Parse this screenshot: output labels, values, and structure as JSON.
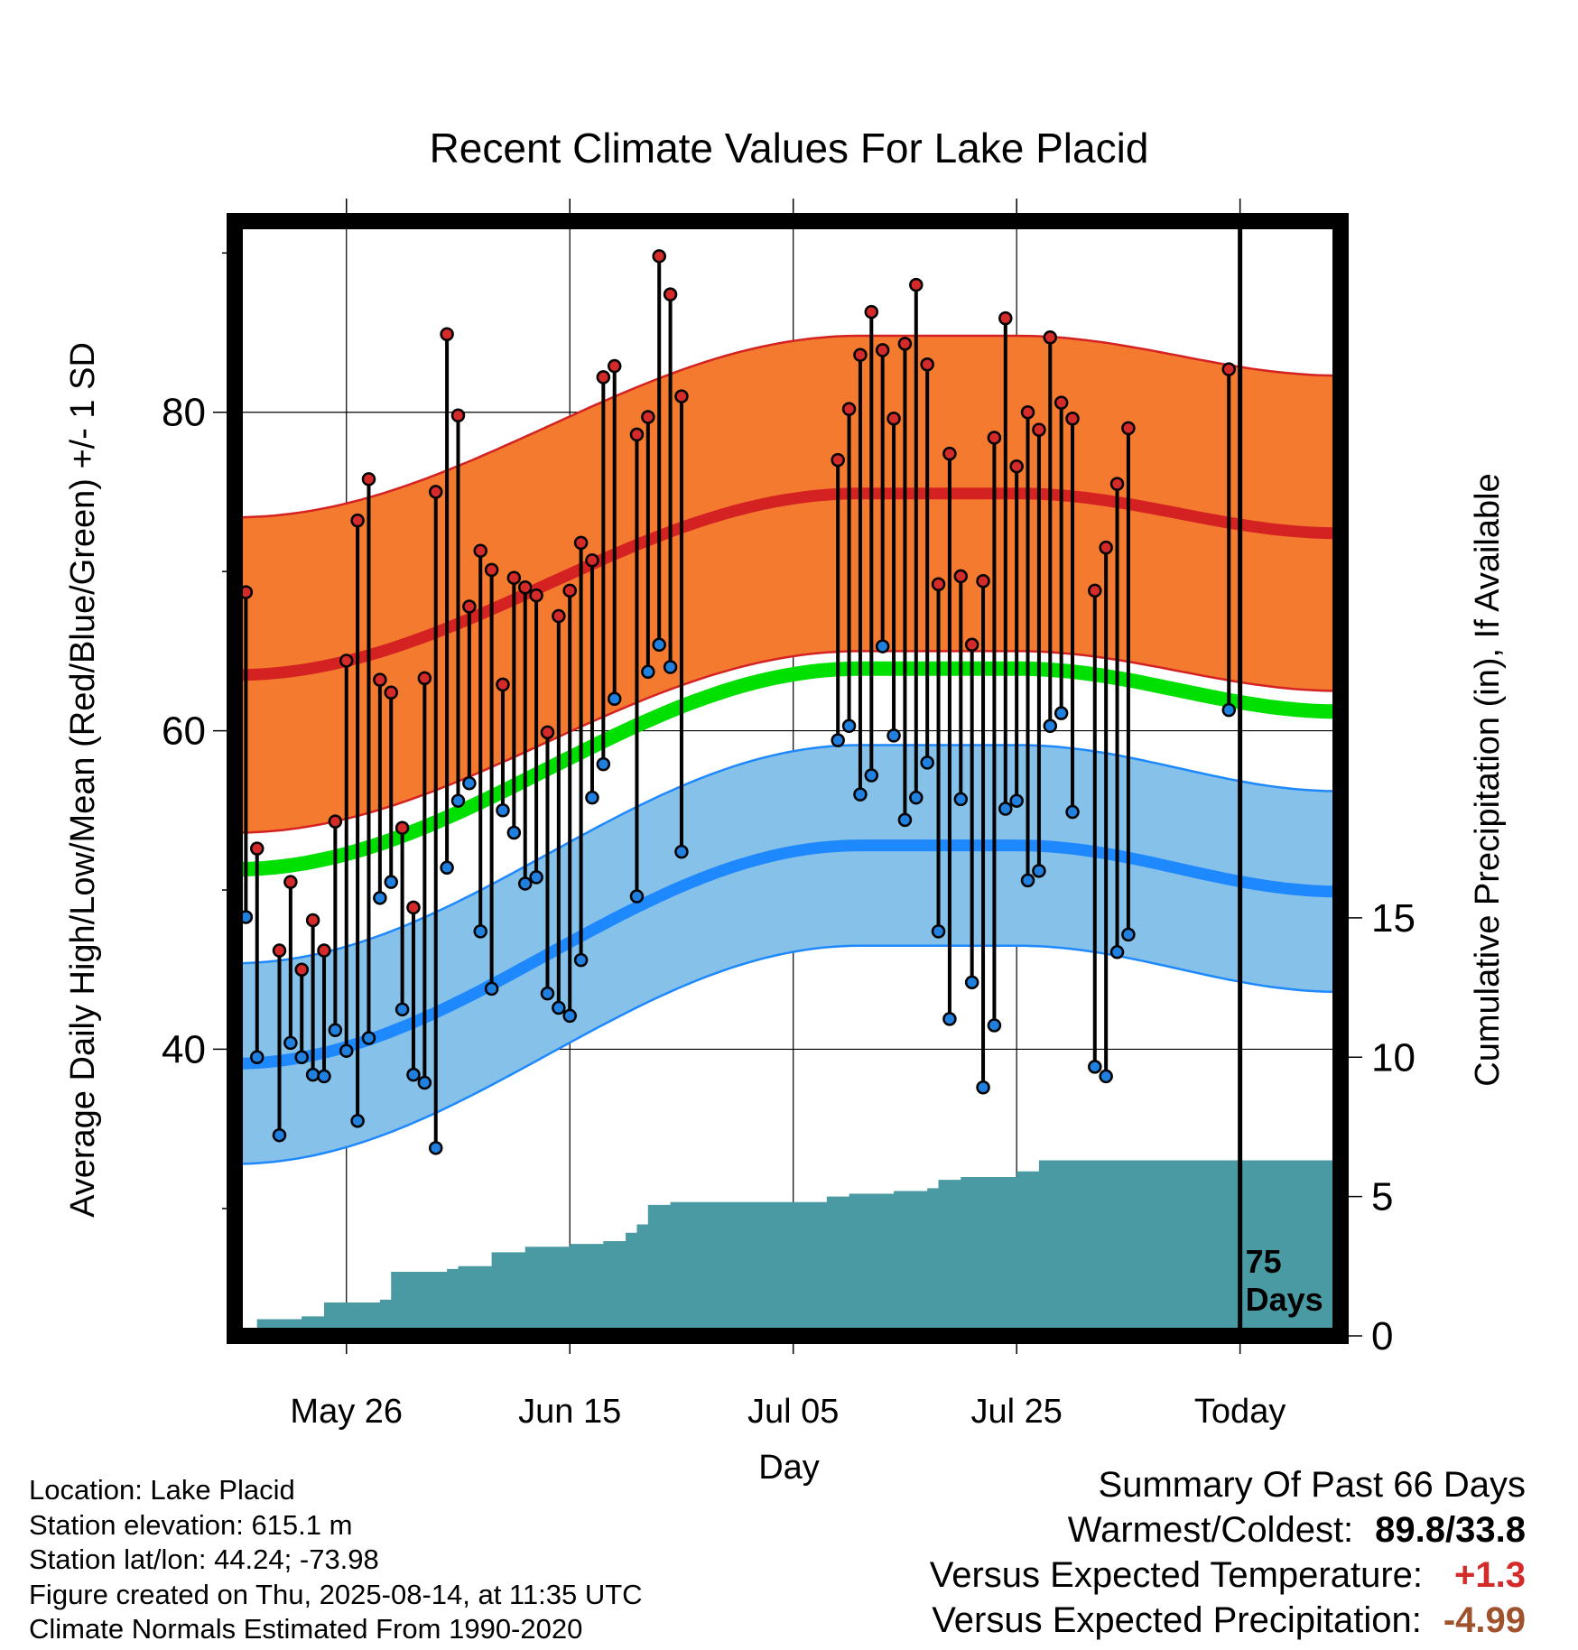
{
  "chart_data": {
    "type": "line",
    "title": "Recent Climate Values For Lake Placid",
    "xlabel": "Day",
    "ylabel": "Average Daily High/Low/Mean (Red/Blue/Green) +/- 1 SD",
    "y2label": "Cumulative Precipitation (in), If Available",
    "x_range": [
      "2025-05-16",
      "2025-08-23"
    ],
    "ylim": [
      22,
      92
    ],
    "y2lim": [
      0,
      40
    ],
    "x_tick_labels": [
      "May 26",
      "Jun 15",
      "Jul 05",
      "Jul 25",
      "Today"
    ],
    "x_tick_dates": [
      "2025-05-26",
      "2025-06-15",
      "2025-07-05",
      "2025-07-25",
      "2025-08-14"
    ],
    "y_tick_labels": [
      "40",
      "60",
      "80"
    ],
    "y2_tick_labels": [
      "0",
      "5",
      "10",
      "15"
    ],
    "today_marker": {
      "date": "2025-08-14",
      "label_line1": "75",
      "label_line2": "Days"
    },
    "normal_high_mean": {
      "x": [
        "2025-05-16",
        "2025-07-11",
        "2025-07-25",
        "2025-08-23"
      ],
      "y": [
        63.5,
        74.9,
        74.9,
        72.4
      ]
    },
    "normal_high_sd": 9.9,
    "normal_mean": {
      "x": [
        "2025-05-16",
        "2025-07-11",
        "2025-07-25",
        "2025-08-23"
      ],
      "y": [
        51.3,
        63.9,
        63.9,
        61.2
      ]
    },
    "normal_low_mean": {
      "x": [
        "2025-05-16",
        "2025-07-11",
        "2025-07-25",
        "2025-08-23"
      ],
      "y": [
        39.1,
        52.8,
        52.8,
        49.9
      ]
    },
    "normal_low_sd": 6.3,
    "observed": {
      "x": [
        "2025-05-16",
        "2025-05-17",
        "2025-05-18",
        "2025-05-20",
        "2025-05-21",
        "2025-05-22",
        "2025-05-23",
        "2025-05-24",
        "2025-05-25",
        "2025-05-26",
        "2025-05-27",
        "2025-05-28",
        "2025-05-29",
        "2025-05-30",
        "2025-05-31",
        "2025-06-01",
        "2025-06-02",
        "2025-06-03",
        "2025-06-04",
        "2025-06-05",
        "2025-06-06",
        "2025-06-07",
        "2025-06-08",
        "2025-06-09",
        "2025-06-10",
        "2025-06-11",
        "2025-06-12",
        "2025-06-13",
        "2025-06-14",
        "2025-06-15",
        "2025-06-16",
        "2025-06-17",
        "2025-06-18",
        "2025-06-19",
        "2025-06-21",
        "2025-06-22",
        "2025-06-23",
        "2025-06-24",
        "2025-06-25",
        "2025-07-09",
        "2025-07-10",
        "2025-07-11",
        "2025-07-12",
        "2025-07-13",
        "2025-07-14",
        "2025-07-15",
        "2025-07-16",
        "2025-07-17",
        "2025-07-18",
        "2025-07-19",
        "2025-07-20",
        "2025-07-21",
        "2025-07-22",
        "2025-07-23",
        "2025-07-24",
        "2025-07-25",
        "2025-07-26",
        "2025-07-27",
        "2025-07-28",
        "2025-07-29",
        "2025-07-30",
        "2025-08-01",
        "2025-08-02",
        "2025-08-03",
        "2025-08-04",
        "2025-08-13"
      ],
      "high": [
        77.3,
        68.7,
        52.6,
        46.2,
        50.5,
        45.0,
        48.1,
        46.2,
        54.3,
        64.4,
        73.2,
        75.8,
        63.2,
        62.4,
        53.9,
        48.9,
        63.3,
        75.0,
        84.9,
        79.8,
        67.8,
        71.3,
        70.1,
        62.9,
        69.6,
        69.0,
        68.5,
        59.9,
        67.2,
        68.8,
        71.8,
        70.7,
        82.2,
        82.9,
        78.6,
        79.7,
        89.8,
        87.4,
        81.0,
        77.0,
        80.2,
        83.6,
        86.3,
        83.9,
        79.6,
        84.3,
        88.0,
        83.0,
        69.2,
        77.4,
        69.7,
        65.4,
        69.4,
        78.4,
        85.9,
        76.6,
        80.0,
        78.9,
        84.7,
        80.6,
        79.6,
        68.8,
        71.5,
        75.5,
        79.0,
        82.7
      ],
      "low": [
        51.2,
        48.3,
        39.5,
        34.6,
        40.4,
        39.5,
        38.4,
        38.3,
        41.2,
        39.9,
        35.5,
        40.7,
        49.5,
        50.5,
        42.5,
        38.4,
        37.9,
        33.8,
        51.4,
        55.6,
        56.7,
        47.4,
        43.8,
        55.0,
        53.6,
        50.4,
        50.8,
        43.5,
        42.6,
        42.1,
        45.6,
        55.8,
        57.9,
        62.0,
        49.6,
        63.7,
        65.4,
        64.0,
        52.4,
        59.4,
        60.3,
        56.0,
        57.2,
        65.3,
        59.7,
        54.4,
        55.8,
        58.0,
        47.4,
        41.9,
        55.7,
        44.2,
        37.6,
        41.5,
        55.1,
        55.6,
        50.6,
        51.2,
        60.3,
        61.1,
        54.9,
        38.9,
        38.3,
        46.1,
        47.2,
        61.3
      ]
    },
    "cumulative_precip": {
      "x": [
        "2025-05-16",
        "2025-05-18",
        "2025-05-22",
        "2025-05-24",
        "2025-05-29",
        "2025-05-30",
        "2025-06-04",
        "2025-06-05",
        "2025-06-08",
        "2025-06-11",
        "2025-06-15",
        "2025-06-18",
        "2025-06-20",
        "2025-06-21",
        "2025-06-22",
        "2025-06-24",
        "2025-07-08",
        "2025-07-10",
        "2025-07-14",
        "2025-07-17",
        "2025-07-18",
        "2025-07-20",
        "2025-07-25",
        "2025-07-27",
        "2025-08-23"
      ],
      "y": [
        0.1,
        0.6,
        0.7,
        1.2,
        1.3,
        2.3,
        2.4,
        2.5,
        3.0,
        3.2,
        3.3,
        3.4,
        3.7,
        4.0,
        4.7,
        4.8,
        5.0,
        5.1,
        5.2,
        5.3,
        5.6,
        5.7,
        5.9,
        6.3,
        6.4
      ]
    }
  },
  "footer": {
    "location": "Location: Lake Placid",
    "elevation": "Station elevation: 615.1 m",
    "latlon": "Station lat/lon: 44.24; -73.98",
    "created": "Figure created on Thu, 2025-08-14, at 11:35 UTC",
    "normals": "Climate Normals Estimated From 1990-2020"
  },
  "summary": {
    "heading": "Summary Of Past 66 Days",
    "warmest_coldest_label": "Warmest/Coldest:",
    "warmest_coldest_value": "89.8/33.8",
    "temp_label": "Versus Expected Temperature:",
    "temp_value": "+1.3",
    "precip_label": "Versus Expected Precipitation:",
    "precip_value": "-4.99"
  },
  "colors": {
    "high_band": "#f47a30",
    "high_line": "#d42222",
    "low_band": "#85c1e8",
    "low_line": "#1e88ff",
    "mean_line": "#00e000",
    "precip": "#4a9aa4",
    "high_dot": "#d42a2a",
    "low_dot": "#2080e0"
  }
}
